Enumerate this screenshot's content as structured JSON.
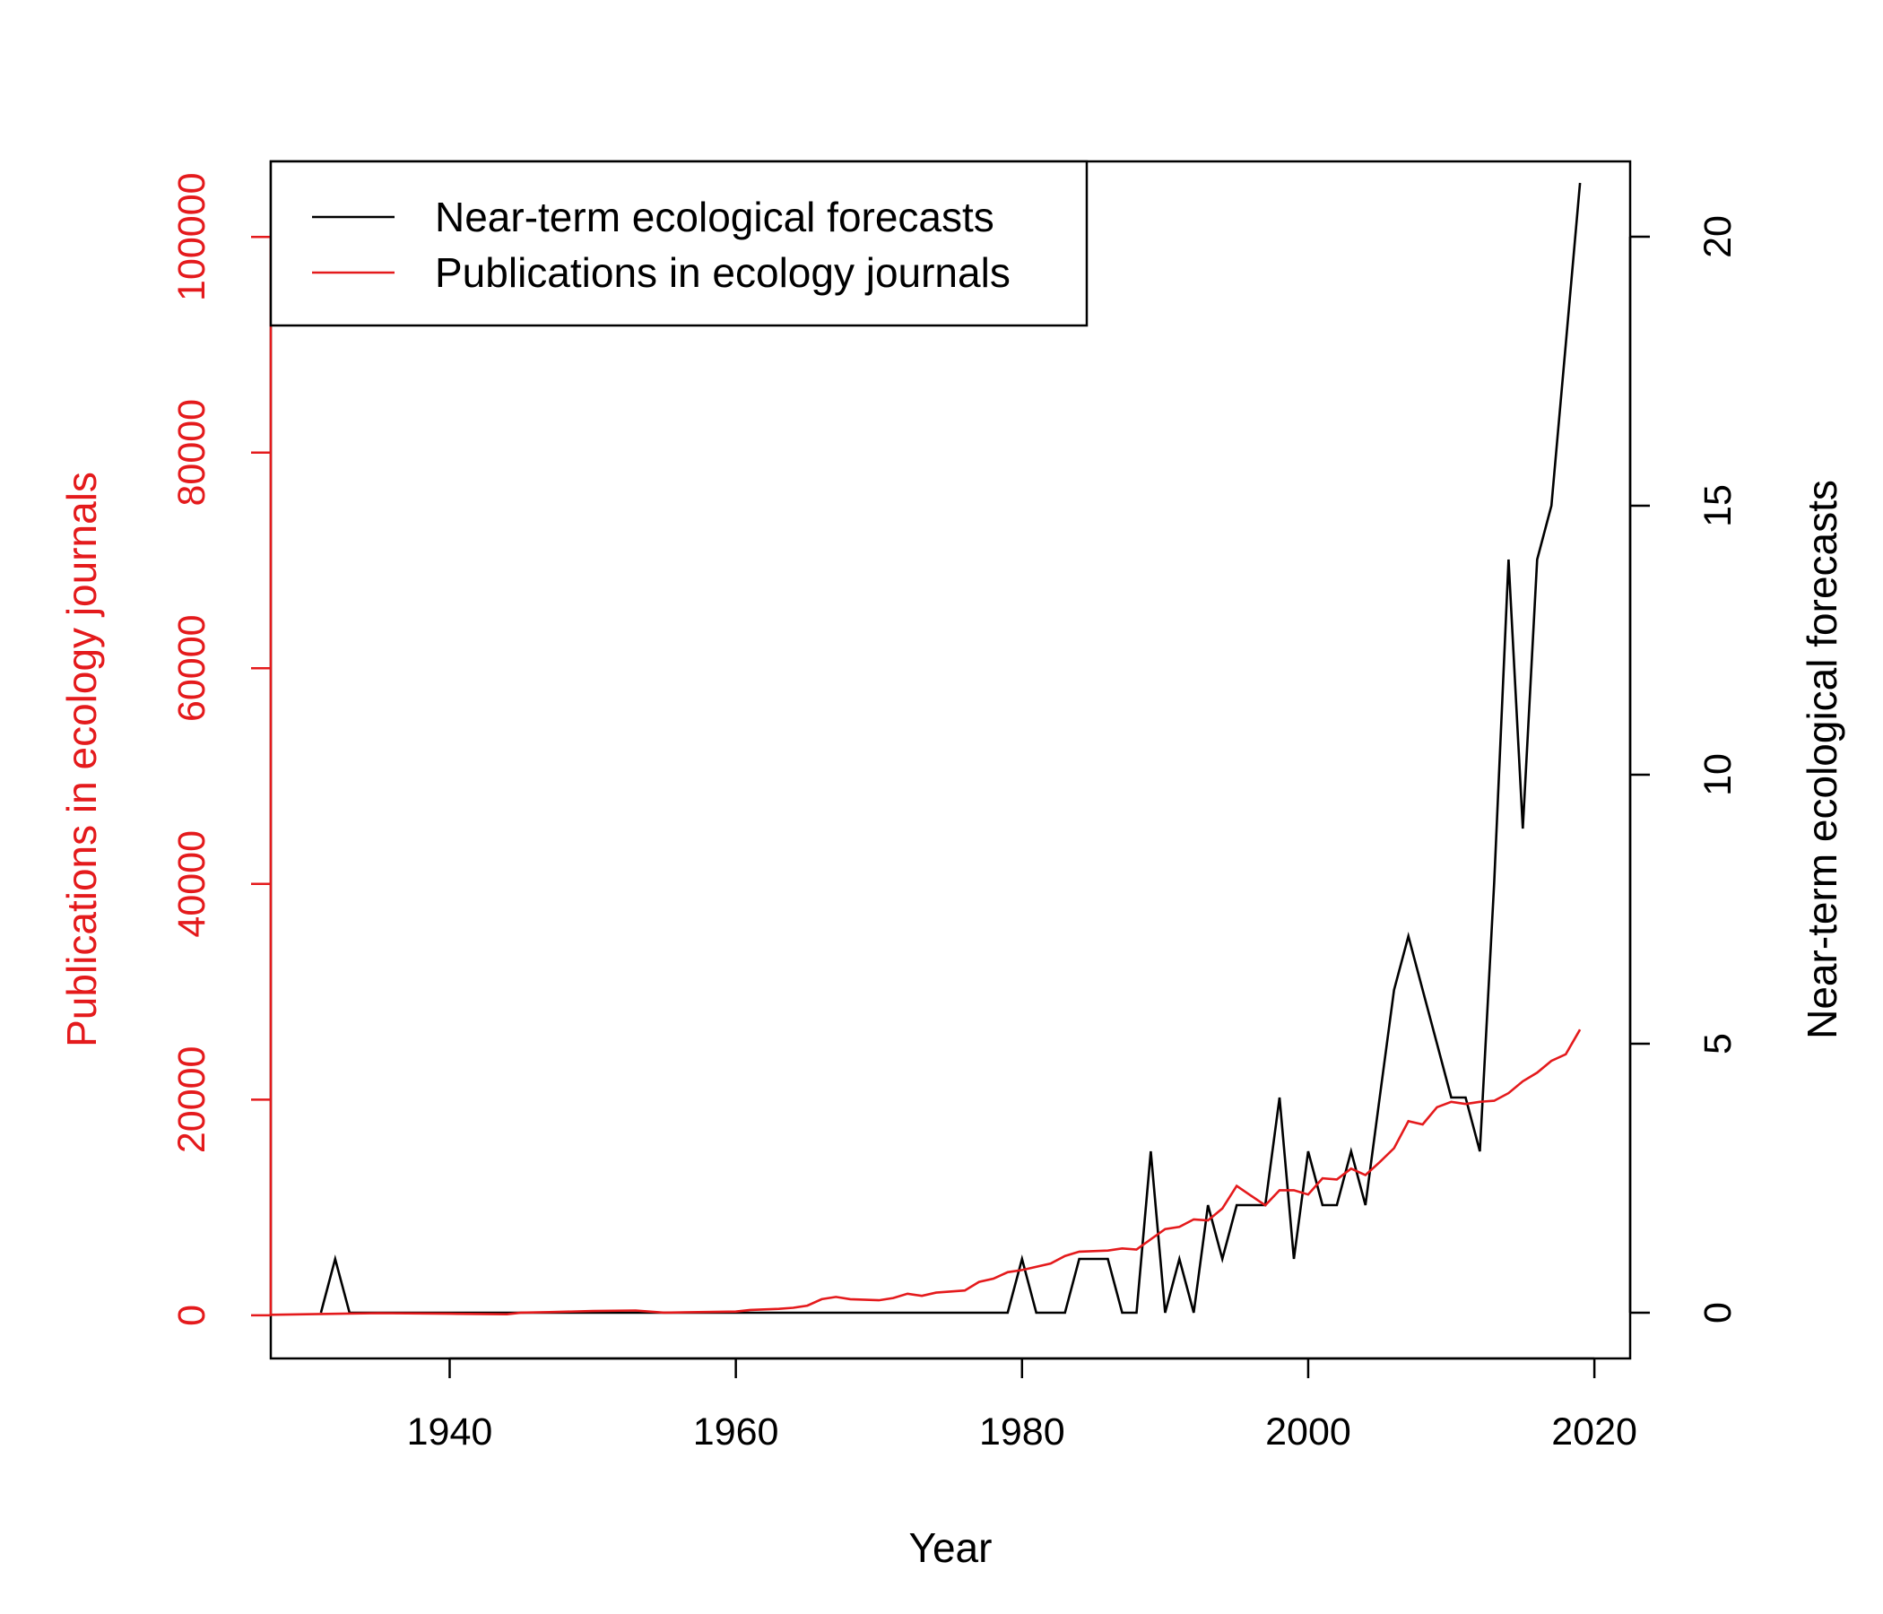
{
  "chart_data": {
    "type": "line",
    "title": "",
    "xlabel": "Year",
    "ylabel_left": "Publications in ecology journals",
    "ylabel_right": "Near-term ecological forecasts",
    "xlim": [
      1927.5,
      2022.5
    ],
    "ylim_left": [
      -4000,
      107000
    ],
    "ylim_right": [
      -0.85,
      21.4
    ],
    "xticks": [
      1940,
      1960,
      1980,
      2000,
      2020
    ],
    "yticks_left": [
      0,
      20000,
      40000,
      60000,
      80000,
      100000
    ],
    "yticks_right": [
      0,
      5,
      10,
      15,
      20
    ],
    "legend_position": "top-left",
    "colors": {
      "forecasts": "#000000",
      "publications": "#e41a1c",
      "left_axis": "#e41a1c",
      "right_axis": "#000000"
    },
    "series": [
      {
        "name": "Near-term ecological forecasts",
        "axis": "right",
        "color": "#000000",
        "x": [
          1931,
          1932,
          1933,
          1934,
          1935,
          1940,
          1950,
          1960,
          1970,
          1979,
          1980,
          1981,
          1982,
          1983,
          1984,
          1985,
          1986,
          1987,
          1988,
          1989,
          1990,
          1991,
          1992,
          1993,
          1994,
          1995,
          1996,
          1997,
          1998,
          1999,
          2000,
          2001,
          2002,
          2003,
          2004,
          2005,
          2006,
          2007,
          2008,
          2009,
          2010,
          2011,
          2012,
          2013,
          2014,
          2015,
          2016,
          2017,
          2018,
          2019
        ],
        "y": [
          0,
          1,
          0,
          0,
          0,
          0,
          0,
          0,
          0,
          0,
          1,
          0,
          0,
          0,
          1,
          1,
          1,
          0,
          0,
          3,
          0,
          1,
          0,
          2,
          1,
          2,
          2,
          2,
          4,
          1,
          3,
          2,
          2,
          3,
          2,
          4,
          6,
          7,
          6,
          5,
          4,
          4,
          3,
          8,
          14,
          9,
          14,
          15,
          18,
          21
        ]
      },
      {
        "name": "Publications in ecology journals",
        "axis": "left",
        "color": "#e41a1c",
        "x": [
          1925,
          1930,
          1935,
          1940,
          1944,
          1945,
          1947,
          1950,
          1953,
          1955,
          1960,
          1961,
          1963,
          1964,
          1965,
          1966,
          1967,
          1968,
          1970,
          1971,
          1972,
          1973,
          1974,
          1976,
          1977,
          1978,
          1979,
          1980,
          1982,
          1983,
          1984,
          1986,
          1987,
          1988,
          1990,
          1991,
          1992,
          1993,
          1994,
          1995,
          1996,
          1997,
          1998,
          1999,
          2000,
          2001,
          2002,
          2003,
          2004,
          2005,
          2006,
          2007,
          2008,
          2009,
          2010,
          2011,
          2012,
          2013,
          2014,
          2015,
          2016,
          2017,
          2018,
          2019
        ],
        "y": [
          0,
          100,
          200,
          150,
          100,
          250,
          300,
          400,
          450,
          250,
          350,
          500,
          600,
          700,
          900,
          1500,
          1700,
          1500,
          1400,
          1600,
          2000,
          1800,
          2100,
          2300,
          3100,
          3400,
          4000,
          4200,
          4800,
          5500,
          5900,
          6000,
          6200,
          6100,
          8000,
          8200,
          8900,
          8800,
          9900,
          12000,
          11100,
          10200,
          11600,
          11600,
          11200,
          12700,
          12600,
          13600,
          13000,
          14200,
          15500,
          18000,
          17700,
          19300,
          19800,
          19600,
          19800,
          19900,
          20600,
          21700,
          22500,
          23600,
          24200,
          26500
        ]
      }
    ]
  }
}
